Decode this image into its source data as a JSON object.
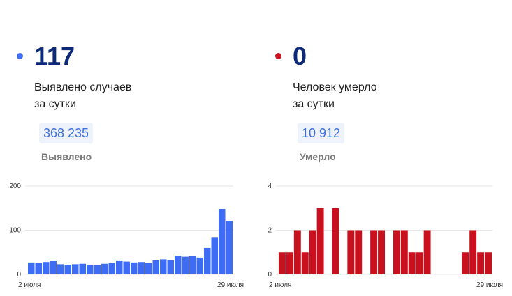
{
  "colors": {
    "cases_accent": "#3f6cf4",
    "deaths_accent": "#c8101e",
    "headline": "#0d2a78"
  },
  "cases": {
    "daily_value": "117",
    "subtitle_line1": "Выявлено случаев",
    "subtitle_line2": "за сутки",
    "total_value": "368 235",
    "total_label": "Выявлено"
  },
  "deaths": {
    "daily_value": "0",
    "subtitle_line1": "Человек умерло",
    "subtitle_line2": "за сутки",
    "total_value": "10 912",
    "total_label": "Умерло"
  },
  "chart_data": [
    {
      "type": "bar",
      "series_key": "cases",
      "ylim": [
        0,
        200
      ],
      "y_ticks": [
        "0",
        "100",
        "200"
      ],
      "x_tick_labels": [
        "2 июля",
        "29 июля"
      ],
      "grid": true,
      "values": [
        27,
        26,
        28,
        30,
        23,
        22,
        23,
        24,
        22,
        22,
        24,
        26,
        30,
        29,
        27,
        28,
        26,
        32,
        34,
        32,
        42,
        40,
        41,
        38,
        60,
        83,
        148,
        121
      ]
    },
    {
      "type": "bar",
      "series_key": "deaths",
      "ylim": [
        0,
        4
      ],
      "y_ticks": [
        "0",
        "2",
        "4"
      ],
      "x_tick_labels": [
        "2 июля",
        "29 июля"
      ],
      "grid": true,
      "values": [
        1,
        1,
        2,
        1,
        2,
        3,
        0,
        3,
        0,
        2,
        2,
        0,
        2,
        2,
        0,
        2,
        2,
        1,
        1,
        2,
        0,
        0,
        0,
        0,
        1,
        2,
        1,
        1
      ]
    }
  ]
}
